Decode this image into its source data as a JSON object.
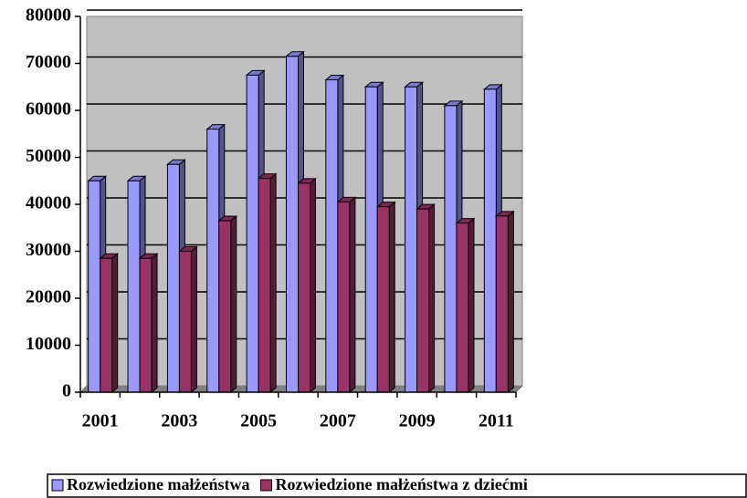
{
  "chart_data": {
    "type": "bar",
    "categories": [
      "2001",
      null,
      "2003",
      null,
      "2005",
      null,
      "2007",
      null,
      "2009",
      null,
      "2011"
    ],
    "series": [
      {
        "name": "Rozwiedzione małżeństwa",
        "color": "#9999ff",
        "values": [
          45000,
          45000,
          48500,
          56000,
          67500,
          71500,
          66500,
          65000,
          65000,
          61000,
          64500
        ]
      },
      {
        "name": "Rozwiedzione małżeństwa z dziećmi",
        "color": "#993366",
        "values": [
          28500,
          28500,
          30000,
          36500,
          45500,
          44500,
          40500,
          39500,
          39000,
          36000,
          37500
        ]
      }
    ],
    "ylim": [
      0,
      80000
    ],
    "yticks": [
      0,
      10000,
      20000,
      30000,
      40000,
      50000,
      60000,
      70000,
      80000
    ],
    "grid": true,
    "legend": "bottom"
  }
}
